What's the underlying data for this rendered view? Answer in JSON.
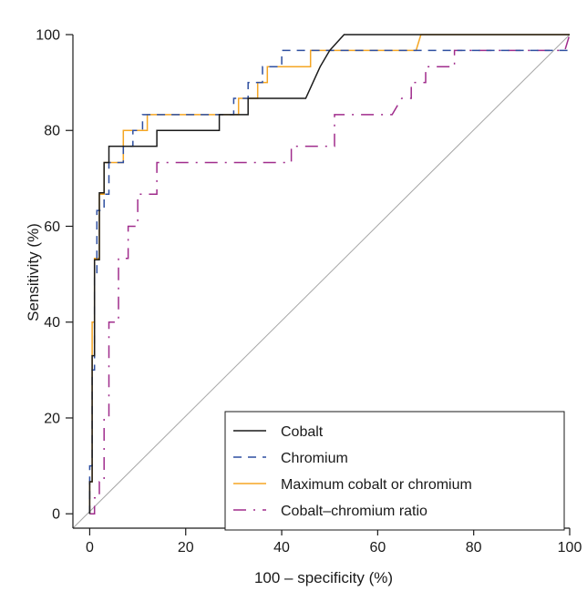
{
  "chart_data": {
    "type": "line",
    "title": "",
    "xlabel": "100 – specificity (%)",
    "ylabel": "Sensitivity (%)",
    "xlim": [
      -3.5,
      100
    ],
    "ylim": [
      -3,
      100
    ],
    "xticks": [
      "0",
      "20",
      "40",
      "60",
      "80",
      "100"
    ],
    "yticks": [
      "0",
      "20",
      "40",
      "60",
      "80",
      "100"
    ],
    "legend_position": "bottom-right",
    "grid": false,
    "reference_line": {
      "x": [
        -3.5,
        100
      ],
      "y": [
        -3,
        100
      ],
      "color": "#a6a6a6"
    },
    "series": [
      {
        "name": "Cobalt",
        "color": "#1a1a1a",
        "dash": "solid",
        "x": [
          0,
          0,
          0.5,
          0.5,
          1,
          1,
          2,
          2,
          3,
          3,
          4,
          4,
          7,
          7,
          14,
          14,
          27,
          27,
          33,
          33,
          45,
          48,
          50,
          53,
          100
        ],
        "y": [
          0,
          6.7,
          6.7,
          33,
          33,
          53,
          53,
          67,
          67,
          73.3,
          73.3,
          76.7,
          76.7,
          76.7,
          76.7,
          80,
          80,
          83.3,
          83.3,
          86.7,
          86.7,
          93.3,
          96.7,
          100,
          100
        ]
      },
      {
        "name": "Chromium",
        "color": "#2e4fa0",
        "dash": "longdash",
        "x": [
          0,
          0,
          0.5,
          0.5,
          1,
          1,
          1.5,
          1.5,
          3,
          3,
          4,
          4,
          7,
          7,
          9,
          9,
          11,
          11,
          30,
          30,
          33,
          33,
          36,
          36,
          40,
          40,
          47,
          47,
          100
        ],
        "y": [
          0,
          10,
          10,
          30,
          30,
          50,
          50,
          63.3,
          63.3,
          66.7,
          66.7,
          73.3,
          73.3,
          76.7,
          76.7,
          80,
          80,
          83.3,
          83.3,
          86.7,
          86.7,
          90,
          90,
          93.3,
          93.3,
          96.7,
          96.7,
          96.7,
          96.7
        ]
      },
      {
        "name": "Maximum cobalt or chromium",
        "color": "#f5a623",
        "dash": "solid",
        "x": [
          0,
          0,
          0.5,
          0.5,
          1,
          1,
          2,
          2,
          3,
          3,
          7,
          7,
          10,
          10,
          12,
          12,
          31,
          31,
          35,
          35,
          37,
          37,
          46,
          46,
          68,
          69,
          100
        ],
        "y": [
          0,
          6.7,
          6.7,
          40,
          40,
          53.3,
          53.3,
          66.7,
          66.7,
          73.3,
          73.3,
          80,
          80,
          80,
          80,
          83.3,
          83.3,
          86.7,
          86.7,
          90,
          90,
          93.3,
          93.3,
          96.7,
          96.7,
          100,
          100
        ]
      },
      {
        "name": "Cobalt–chromium ratio",
        "color": "#a02c8c",
        "dash": "dashdot",
        "x": [
          0,
          0,
          1,
          1,
          2,
          2,
          3,
          3,
          4,
          4,
          6,
          6,
          8,
          8,
          10,
          10,
          14,
          14,
          25,
          25,
          42,
          42,
          51,
          51,
          63,
          65,
          67,
          67,
          70,
          70,
          76,
          76,
          99,
          100
        ],
        "y": [
          0,
          0,
          0,
          3.3,
          3.3,
          6.7,
          6.7,
          20,
          20,
          40,
          40,
          53.3,
          53.3,
          60,
          60,
          66.7,
          66.7,
          73.3,
          73.3,
          73.3,
          73.3,
          76.7,
          76.7,
          83.3,
          83.3,
          86.7,
          86.7,
          90,
          90,
          93.3,
          93.3,
          96.7,
          96.7,
          100
        ]
      }
    ]
  }
}
